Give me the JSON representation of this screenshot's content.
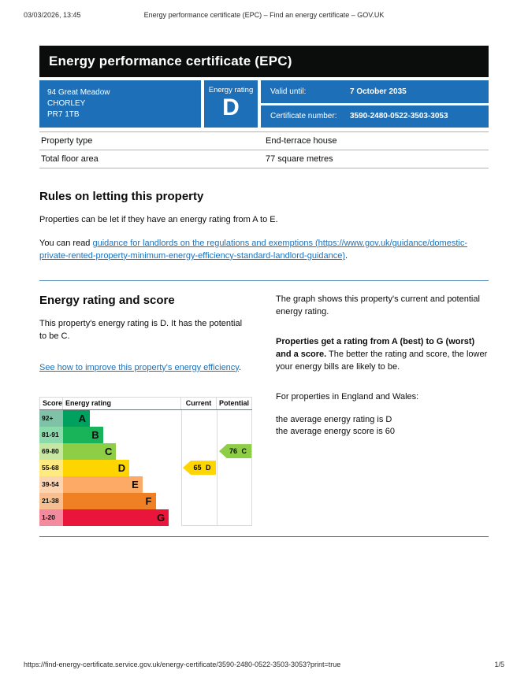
{
  "print_header": {
    "datetime": "03/03/2026, 13:45",
    "doc_title": "Energy performance certificate (EPC) – Find an energy certificate – GOV.UK"
  },
  "print_footer": {
    "url": "https://find-energy-certificate.service.gov.uk/energy-certificate/3590-2480-0522-3503-3053?print=true",
    "page_indicator": "1/5"
  },
  "page_title": "Energy performance certificate (EPC)",
  "summary": {
    "panel_color": "#1d70b8",
    "address_lines": [
      "94 Great Meadow",
      "CHORLEY",
      "PR7 1TB"
    ],
    "energy_rating_label": "Energy rating",
    "energy_rating": "D",
    "valid_until_label": "Valid until:",
    "valid_until_value": "7 October 2035",
    "certificate_number_label": "Certificate number:",
    "certificate_number_value": "3590-2480-0522-3503-3053"
  },
  "property_facts": [
    {
      "label": "Property type",
      "value": "End-terrace house"
    },
    {
      "label": "Total floor area",
      "value": "77 square metres"
    }
  ],
  "letting": {
    "heading": "Rules on letting this property",
    "para1": "Properties can be let if they have an energy rating from A to E.",
    "para2_prefix": "You can read ",
    "link_text": "guidance for landlords on the regulations and exemptions (https://www.gov.uk/guidance/domestic-private-rented-property-minimum-energy-efficiency-standard-landlord-guidance)",
    "para2_suffix": "."
  },
  "rating_section": {
    "heading": "Energy rating and score",
    "para1": "This property's energy rating is D. It has the potential to be C.",
    "improve_link_text": "See how to improve this property's energy efficiency",
    "improve_link_suffix": ".",
    "right_para1": "The graph shows this property's current and potential energy rating.",
    "right_para2_bold": "Properties get a rating from A (best) to G (worst) and a score.",
    "right_para2_rest": " The better the rating and score, the lower your energy bills are likely to be.",
    "right_para3": "For properties in England and Wales:",
    "average_rating_line": "the average energy rating is D",
    "average_score_line": "the average energy score is 60"
  },
  "chart_data": {
    "type": "epc-band-chart",
    "headers": {
      "score": "Score",
      "rating": "Energy rating",
      "current": "Current",
      "potential": "Potential"
    },
    "bands": [
      {
        "score_range": "92+",
        "letter": "A",
        "bar_color": "#00a05e",
        "score_color": "#80c2a8"
      },
      {
        "score_range": "81-91",
        "letter": "B",
        "bar_color": "#19b459",
        "score_color": "#8cd9ac"
      },
      {
        "score_range": "69-80",
        "letter": "C",
        "bar_color": "#8dce46",
        "score_color": "#c6e6a2"
      },
      {
        "score_range": "55-68",
        "letter": "D",
        "bar_color": "#ffd500",
        "score_color": "#ffea7f"
      },
      {
        "score_range": "39-54",
        "letter": "E",
        "bar_color": "#fcaa65",
        "score_color": "#fdd4b2"
      },
      {
        "score_range": "21-38",
        "letter": "F",
        "bar_color": "#ef8023",
        "score_color": "#f7bf91"
      },
      {
        "score_range": "1-20",
        "letter": "G",
        "bar_color": "#e9153b",
        "score_color": "#f48a9d"
      }
    ],
    "current": {
      "score": 65,
      "band": "D",
      "label": "65 D",
      "color": "#ffd500"
    },
    "potential": {
      "score": 76,
      "band": "C",
      "label": "76 C",
      "color": "#8dce46"
    }
  }
}
